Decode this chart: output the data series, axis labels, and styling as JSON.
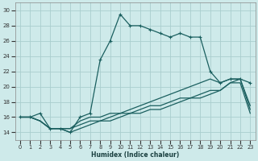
{
  "xlabel": "Humidex (Indice chaleur)",
  "xlim": [
    -0.5,
    23.5
  ],
  "ylim": [
    13,
    31
  ],
  "yticks": [
    14,
    16,
    18,
    20,
    22,
    24,
    26,
    28,
    30
  ],
  "xticks": [
    0,
    1,
    2,
    3,
    4,
    5,
    6,
    7,
    8,
    9,
    10,
    11,
    12,
    13,
    14,
    15,
    16,
    17,
    18,
    19,
    20,
    21,
    22,
    23
  ],
  "bg_color": "#ceeaea",
  "grid_color": "#aacece",
  "line_color": "#1a5f5f",
  "curve_main": [
    16.0,
    16.0,
    16.5,
    14.5,
    14.5,
    14.0,
    16.0,
    16.5,
    23.5,
    26.0,
    29.5,
    28.0,
    28.0,
    27.5,
    27.0,
    26.5,
    27.0,
    26.5,
    26.5,
    22.0,
    20.5,
    21.0,
    21.0,
    20.5
  ],
  "curve2": [
    16.0,
    16.0,
    15.5,
    14.5,
    14.5,
    14.5,
    15.5,
    16.0,
    16.0,
    16.5,
    16.5,
    17.0,
    17.5,
    18.0,
    18.5,
    19.0,
    19.5,
    20.0,
    20.5,
    21.0,
    20.5,
    21.0,
    21.0,
    17.5
  ],
  "curve3": [
    16.0,
    16.0,
    15.5,
    14.5,
    14.5,
    14.5,
    15.0,
    15.5,
    15.5,
    16.0,
    16.5,
    16.5,
    17.0,
    17.5,
    17.5,
    18.0,
    18.5,
    18.5,
    19.0,
    19.5,
    19.5,
    20.5,
    21.0,
    17.0
  ],
  "curve4": [
    16.0,
    16.0,
    15.5,
    14.5,
    14.5,
    14.0,
    14.5,
    15.0,
    15.5,
    15.5,
    16.0,
    16.5,
    16.5,
    17.0,
    17.0,
    17.5,
    18.0,
    18.5,
    18.5,
    19.0,
    19.5,
    20.5,
    20.5,
    16.5
  ]
}
